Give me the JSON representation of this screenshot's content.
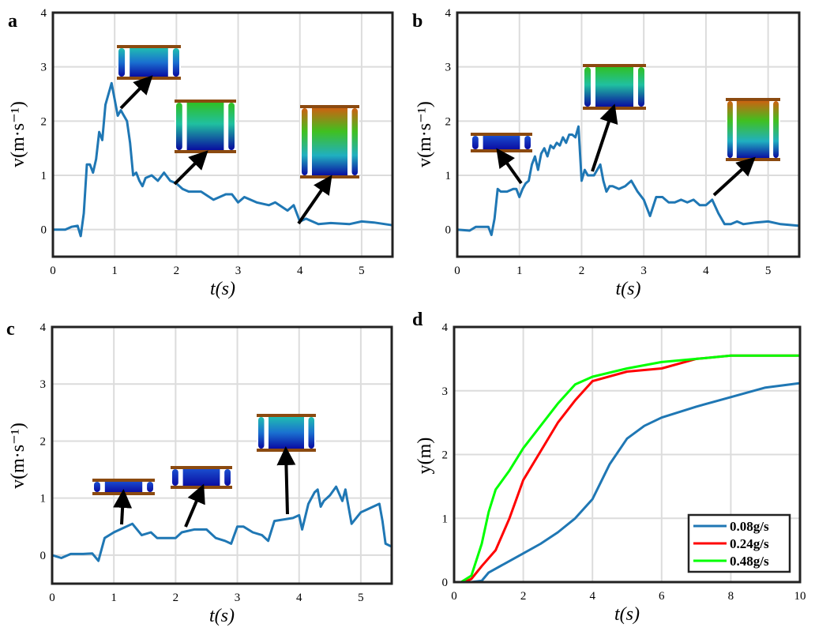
{
  "chart_data": [
    {
      "panel": "a",
      "type": "line",
      "xlabel": "t(s)",
      "ylabel": "v(m·s⁻¹)",
      "xlim": [
        0,
        5.5
      ],
      "ylim": [
        -0.5,
        4
      ],
      "xticks": [
        0,
        1,
        2,
        3,
        4,
        5
      ],
      "yticks": [
        0,
        1,
        2,
        3,
        4
      ],
      "grid": true,
      "series": [
        {
          "color": "#1f77b4",
          "x": [
            0,
            0.2,
            0.3,
            0.4,
            0.45,
            0.5,
            0.55,
            0.6,
            0.65,
            0.7,
            0.75,
            0.8,
            0.85,
            0.9,
            0.95,
            1.0,
            1.05,
            1.1,
            1.15,
            1.2,
            1.25,
            1.3,
            1.35,
            1.4,
            1.45,
            1.5,
            1.6,
            1.7,
            1.8,
            1.9,
            2.0,
            2.1,
            2.2,
            2.4,
            2.6,
            2.8,
            2.9,
            3.0,
            3.1,
            3.3,
            3.5,
            3.6,
            3.8,
            3.9,
            4.0,
            4.1,
            4.3,
            4.5,
            4.8,
            5.0,
            5.2,
            5.5
          ],
          "y": [
            0,
            0,
            0.05,
            0.07,
            -0.12,
            0.3,
            1.2,
            1.2,
            1.05,
            1.3,
            1.8,
            1.65,
            2.3,
            2.5,
            2.7,
            2.4,
            2.1,
            2.2,
            2.1,
            2.0,
            1.6,
            1.0,
            1.05,
            0.9,
            0.8,
            0.95,
            1.0,
            0.9,
            1.05,
            0.9,
            0.85,
            0.75,
            0.7,
            0.7,
            0.55,
            0.65,
            0.65,
            0.5,
            0.6,
            0.5,
            0.45,
            0.5,
            0.35,
            0.45,
            0.15,
            0.2,
            0.1,
            0.12,
            0.1,
            0.15,
            0.13,
            0.08
          ]
        }
      ]
    },
    {
      "panel": "b",
      "type": "line",
      "xlabel": "t(s)",
      "ylabel": "v(m·s⁻¹)",
      "xlim": [
        0,
        5.5
      ],
      "ylim": [
        -0.5,
        4
      ],
      "xticks": [
        0,
        1,
        2,
        3,
        4,
        5
      ],
      "yticks": [
        0,
        1,
        2,
        3,
        4
      ],
      "grid": true,
      "series": [
        {
          "color": "#1f77b4",
          "x": [
            0,
            0.2,
            0.3,
            0.5,
            0.55,
            0.6,
            0.65,
            0.7,
            0.8,
            0.9,
            0.95,
            1.0,
            1.05,
            1.1,
            1.15,
            1.2,
            1.25,
            1.3,
            1.35,
            1.4,
            1.45,
            1.5,
            1.55,
            1.6,
            1.65,
            1.7,
            1.75,
            1.8,
            1.85,
            1.9,
            1.95,
            2.0,
            2.05,
            2.1,
            2.2,
            2.3,
            2.35,
            2.4,
            2.45,
            2.5,
            2.6,
            2.7,
            2.8,
            2.9,
            3.0,
            3.1,
            3.2,
            3.3,
            3.4,
            3.5,
            3.6,
            3.7,
            3.8,
            3.9,
            4.0,
            4.1,
            4.2,
            4.3,
            4.4,
            4.5,
            4.6,
            4.8,
            5.0,
            5.2,
            5.5
          ],
          "y": [
            0,
            -0.02,
            0.05,
            0.05,
            -0.1,
            0.2,
            0.75,
            0.7,
            0.7,
            0.75,
            0.75,
            0.6,
            0.75,
            0.85,
            0.9,
            1.2,
            1.35,
            1.1,
            1.4,
            1.5,
            1.35,
            1.55,
            1.5,
            1.6,
            1.55,
            1.7,
            1.6,
            1.75,
            1.75,
            1.7,
            1.9,
            0.9,
            1.1,
            1.0,
            1.0,
            1.2,
            0.9,
            0.7,
            0.8,
            0.8,
            0.75,
            0.8,
            0.9,
            0.7,
            0.55,
            0.25,
            0.6,
            0.6,
            0.5,
            0.5,
            0.55,
            0.5,
            0.55,
            0.45,
            0.45,
            0.55,
            0.3,
            0.1,
            0.1,
            0.15,
            0.1,
            0.13,
            0.15,
            0.1,
            0.07
          ]
        }
      ]
    },
    {
      "panel": "c",
      "type": "line",
      "xlabel": "t(s)",
      "ylabel": "v(m·s⁻¹)",
      "xlim": [
        0,
        5.5
      ],
      "ylim": [
        -0.5,
        4
      ],
      "xticks": [
        0,
        1,
        2,
        3,
        4,
        5
      ],
      "yticks": [
        0,
        1,
        2,
        3,
        4
      ],
      "grid": true,
      "series": [
        {
          "color": "#1f77b4",
          "x": [
            0,
            0.15,
            0.3,
            0.5,
            0.65,
            0.75,
            0.85,
            1.0,
            1.1,
            1.3,
            1.45,
            1.6,
            1.7,
            1.9,
            2.0,
            2.1,
            2.3,
            2.5,
            2.65,
            2.8,
            2.9,
            3.0,
            3.1,
            3.25,
            3.4,
            3.5,
            3.6,
            3.9,
            4.0,
            4.05,
            4.15,
            4.25,
            4.3,
            4.35,
            4.4,
            4.5,
            4.6,
            4.7,
            4.75,
            4.85,
            5.0,
            5.1,
            5.2,
            5.3,
            5.35,
            5.4,
            5.5
          ],
          "y": [
            0,
            -0.05,
            0.02,
            0.02,
            0.03,
            -0.1,
            0.3,
            0.4,
            0.45,
            0.55,
            0.35,
            0.4,
            0.3,
            0.3,
            0.3,
            0.4,
            0.45,
            0.45,
            0.3,
            0.25,
            0.2,
            0.5,
            0.5,
            0.4,
            0.35,
            0.25,
            0.6,
            0.65,
            0.7,
            0.45,
            0.9,
            1.1,
            1.15,
            0.85,
            0.95,
            1.05,
            1.2,
            0.95,
            1.15,
            0.55,
            0.75,
            0.8,
            0.85,
            0.9,
            0.6,
            0.2,
            0.15
          ]
        }
      ]
    },
    {
      "panel": "d",
      "type": "line",
      "xlabel": "t(s)",
      "ylabel": "y(m)",
      "xlim": [
        0,
        10
      ],
      "ylim": [
        0,
        4
      ],
      "xticks": [
        0,
        2,
        4,
        6,
        8,
        10
      ],
      "yticks": [
        0,
        1,
        2,
        3,
        4
      ],
      "grid": true,
      "legend": "bottom-right",
      "series": [
        {
          "name": "0.08g/s",
          "color": "#1f77b4",
          "x": [
            0,
            0.5,
            0.8,
            1,
            1.5,
            2,
            2.5,
            3,
            3.5,
            4,
            4.5,
            5,
            5.5,
            6,
            7,
            8,
            9,
            10
          ],
          "y": [
            0,
            0,
            0.02,
            0.15,
            0.3,
            0.45,
            0.6,
            0.78,
            1.0,
            1.3,
            1.85,
            2.25,
            2.45,
            2.58,
            2.75,
            2.9,
            3.05,
            3.12
          ]
        },
        {
          "name": "0.24g/s",
          "color": "#ff0000",
          "x": [
            0.3,
            0.5,
            0.8,
            1.2,
            1.6,
            2,
            2.5,
            3,
            3.5,
            4,
            5,
            6,
            7,
            8,
            10
          ],
          "y": [
            0,
            0.05,
            0.25,
            0.5,
            1.0,
            1.6,
            2.05,
            2.5,
            2.85,
            3.15,
            3.3,
            3.35,
            3.5,
            3.55,
            3.55
          ]
        },
        {
          "name": "0.48g/s",
          "color": "#00ff00",
          "x": [
            0.2,
            0.5,
            0.8,
            1.0,
            1.2,
            1.6,
            2,
            2.5,
            3,
            3.5,
            4,
            5,
            6,
            7,
            8,
            10
          ],
          "y": [
            0,
            0.1,
            0.6,
            1.1,
            1.45,
            1.75,
            2.1,
            2.45,
            2.8,
            3.1,
            3.22,
            3.35,
            3.45,
            3.5,
            3.55,
            3.55
          ]
        }
      ]
    }
  ]
}
